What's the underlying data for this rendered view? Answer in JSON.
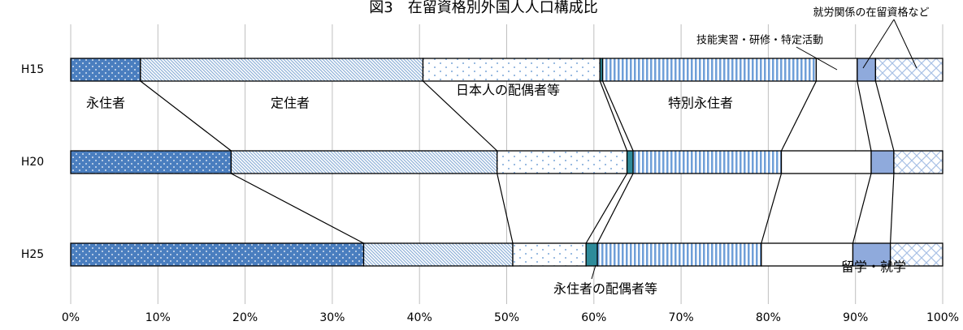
{
  "chart_data": {
    "type": "stacked-bar-100",
    "orientation": "horizontal",
    "title": "図3　在留資格別外国人人口構成比",
    "categories": [
      "H15",
      "H20",
      "H25"
    ],
    "series": [
      {
        "name": "永住者",
        "color": "#4a7ebf",
        "values": [
          8.0,
          18.4,
          33.6
        ]
      },
      {
        "name": "定住者",
        "color": "#8eb0d8",
        "values": [
          32.4,
          30.5,
          17.1
        ]
      },
      {
        "name": "日本人の配偶者等",
        "color": "#7aa6d8",
        "values": [
          20.3,
          14.9,
          8.4
        ]
      },
      {
        "name": "永住者の配偶者等",
        "color": "#2e8b9a",
        "values": [
          0.3,
          0.7,
          1.3
        ]
      },
      {
        "name": "特別永住者",
        "color": "#6f9fd8",
        "values": [
          24.5,
          17.0,
          18.8
        ]
      },
      {
        "name": "技能実習・研修・特定活動",
        "color": "#ffffff",
        "values": [
          4.7,
          10.3,
          10.5
        ]
      },
      {
        "name": "留学・就学",
        "color": "#8faadc",
        "values": [
          2.1,
          2.6,
          4.3
        ]
      },
      {
        "name": "就労関係の在留資格など",
        "color": "#a9c1e6",
        "values": [
          7.7,
          5.6,
          6.0
        ]
      }
    ],
    "xlim": [
      0,
      100
    ],
    "xticks": [
      {
        "value": 0,
        "label": "0%"
      },
      {
        "value": 10,
        "label": "10%"
      },
      {
        "value": 20,
        "label": "20%"
      },
      {
        "value": 30,
        "label": "30%"
      },
      {
        "value": 40,
        "label": "40%"
      },
      {
        "value": 50,
        "label": "50%"
      },
      {
        "value": 60,
        "label": "60%"
      },
      {
        "value": 70,
        "label": "70%"
      },
      {
        "value": 80,
        "label": "80%"
      },
      {
        "value": 90,
        "label": "90%"
      },
      {
        "value": 100,
        "label": "100%"
      }
    ],
    "grid": true
  }
}
